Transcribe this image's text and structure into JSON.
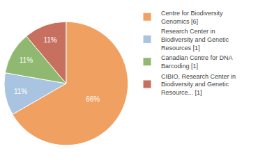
{
  "chart_data": {
    "type": "pie",
    "labels": [
      "Centre for Biodiversity\nGenomics [6]",
      "Research Center in\nBiodiversity and Genetic\nResources [1]",
      "Canadian Centre for DNA\nBarcoding [1]",
      "CIBIO, Research Center in\nBiodiversity and Genetic\nResource... [1]"
    ],
    "values": [
      66,
      11,
      11,
      11
    ],
    "value_labels": [
      "66%",
      "11%",
      "11%",
      "11%"
    ],
    "colors": [
      "#f0a060",
      "#a8c4e0",
      "#90b870",
      "#c87060"
    ],
    "data_labels": true,
    "legend": "right"
  }
}
